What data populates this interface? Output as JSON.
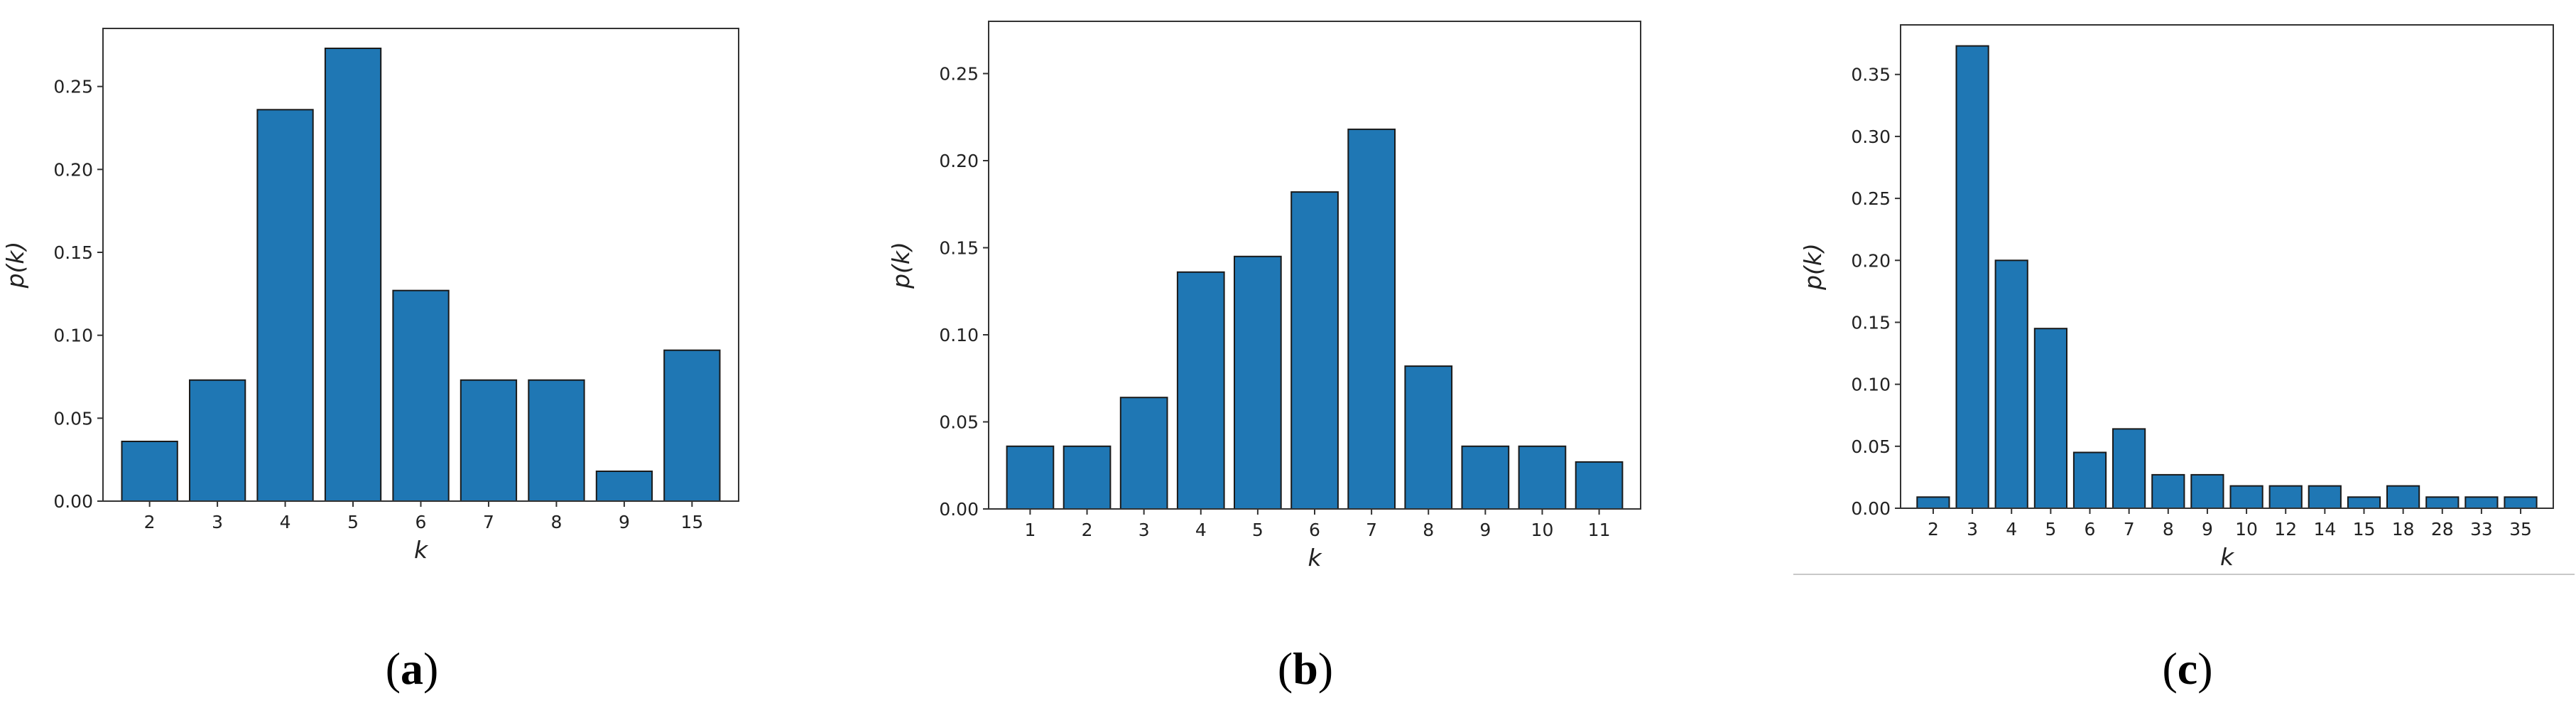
{
  "colors": {
    "bar_fill": "#1f77b4",
    "bar_edge": "#1a1a1a",
    "axes": "#333333"
  },
  "chart_data": [
    {
      "panel": "a",
      "type": "bar",
      "categories": [
        "2",
        "3",
        "4",
        "5",
        "6",
        "7",
        "8",
        "9",
        "15"
      ],
      "values": [
        0.036,
        0.073,
        0.236,
        0.273,
        0.127,
        0.073,
        0.073,
        0.018,
        0.091
      ],
      "xlabel": "k",
      "ylabel": "p(k)",
      "ylim": [
        0,
        0.285
      ],
      "yticks": [
        "0.00",
        "0.05",
        "0.10",
        "0.15",
        "0.20",
        "0.25"
      ],
      "grid": false
    },
    {
      "panel": "b",
      "type": "bar",
      "categories": [
        "1",
        "2",
        "3",
        "4",
        "5",
        "6",
        "7",
        "8",
        "9",
        "10",
        "11"
      ],
      "values": [
        0.036,
        0.036,
        0.064,
        0.136,
        0.145,
        0.182,
        0.218,
        0.082,
        0.036,
        0.036,
        0.027
      ],
      "xlabel": "k",
      "ylabel": "p(k)",
      "ylim": [
        0,
        0.28
      ],
      "yticks": [
        "0.00",
        "0.05",
        "0.10",
        "0.15",
        "0.20",
        "0.25"
      ],
      "grid": false
    },
    {
      "panel": "c",
      "type": "bar",
      "categories": [
        "2",
        "3",
        "4",
        "5",
        "6",
        "7",
        "8",
        "9",
        "10",
        "12",
        "14",
        "15",
        "18",
        "28",
        "33",
        "35"
      ],
      "values": [
        0.009,
        0.373,
        0.2,
        0.145,
        0.045,
        0.064,
        0.027,
        0.027,
        0.018,
        0.018,
        0.018,
        0.009,
        0.018,
        0.009,
        0.009,
        0.009
      ],
      "xlabel": "k",
      "ylabel": "p(k)",
      "ylim": [
        0,
        0.39
      ],
      "yticks": [
        "0.00",
        "0.05",
        "0.10",
        "0.15",
        "0.20",
        "0.25",
        "0.30",
        "0.35"
      ],
      "grid": false
    }
  ]
}
